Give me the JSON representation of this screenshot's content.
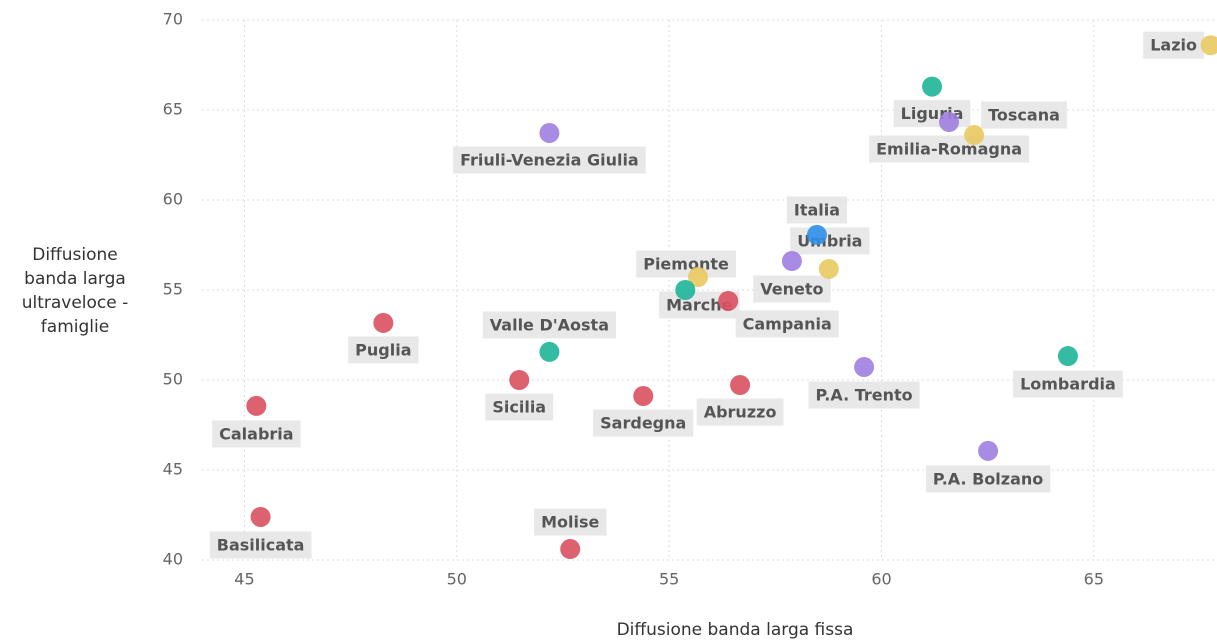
{
  "chart_data": {
    "type": "scatter",
    "x_label": "Diffusione banda larga fissa",
    "y_label": "Diffusione banda larga ultraveloce - famiglie",
    "categories": [
      "Lazio",
      "Liguria",
      "Toscana",
      "Emilia-Romagna",
      "Friuli-Venezia Giulia",
      "Italia",
      "Umbria",
      "Veneto",
      "Piemonte",
      "Marche",
      "Campania",
      "Valle D'Aosta",
      "Puglia",
      "Sicilia",
      "Sardegna",
      "Abruzzo",
      "P.A. Trento",
      "Lombardia",
      "P.A. Bolzano",
      "Calabria",
      "Basilicata",
      "Molise"
    ],
    "x": [
      67.75,
      61.19,
      61.59,
      62.18,
      52.18,
      58.48,
      58.76,
      57.89,
      55.68,
      55.38,
      56.39,
      52.18,
      48.27,
      51.47,
      54.39,
      56.67,
      59.59,
      64.39,
      62.51,
      45.28,
      45.38,
      52.67
    ],
    "values": [
      68.6,
      66.3,
      64.33,
      63.61,
      63.72,
      58.06,
      56.17,
      56.61,
      55.72,
      55.0,
      54.39,
      51.56,
      53.17,
      50.0,
      49.11,
      49.72,
      50.72,
      51.33,
      46.06,
      48.56,
      42.39,
      40.61
    ],
    "colors": [
      "#e8c95f",
      "#1db597",
      "#9f7fe0",
      "#e8c95f",
      "#9f7fe0",
      "#2f8fe8",
      "#e8c95f",
      "#9f7fe0",
      "#e8c95f",
      "#1db597",
      "#d9505e",
      "#1db597",
      "#d9505e",
      "#d9505e",
      "#d9505e",
      "#d9505e",
      "#9f7fe0",
      "#1db597",
      "#9f7fe0",
      "#d9505e",
      "#d9505e",
      "#d9505e"
    ],
    "xlim": [
      44,
      67.9
    ],
    "ylim": [
      40,
      70
    ],
    "xticks": [
      45,
      50,
      55,
      60,
      65
    ],
    "yticks": [
      40,
      45,
      50,
      55,
      60,
      65,
      70
    ],
    "grid": true
  }
}
